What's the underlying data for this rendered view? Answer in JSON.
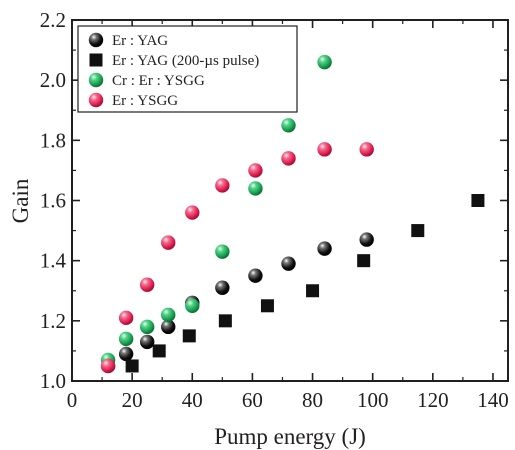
{
  "chart_data": {
    "type": "scatter",
    "title": "",
    "xlabel": "Pump energy (J)",
    "ylabel": "Gain",
    "xlim": [
      0,
      145
    ],
    "ylim": [
      1.0,
      2.2
    ],
    "xticks": [
      0,
      20,
      40,
      60,
      80,
      100,
      120,
      140
    ],
    "xtick_labels": [
      "0",
      "20",
      "40",
      "60",
      "80",
      "100",
      "120",
      "140"
    ],
    "yticks": [
      1.0,
      1.2,
      1.4,
      1.6,
      1.8,
      2.0,
      2.2
    ],
    "ytick_labels": [
      "1.0",
      "1.2",
      "1.4",
      "1.6",
      "1.8",
      "2.0",
      "2.2"
    ],
    "grid": false,
    "legend_position": "top-left",
    "series": [
      {
        "name": "Er : YAG",
        "marker": "circle",
        "color": "#111111",
        "x": [
          12,
          18,
          25,
          32,
          40,
          50,
          61,
          72,
          84,
          98
        ],
        "y": [
          1.05,
          1.09,
          1.13,
          1.18,
          1.26,
          1.31,
          1.35,
          1.39,
          1.44,
          1.47
        ]
      },
      {
        "name": "Er : YAG (200-µs pulse)",
        "marker": "square",
        "color": "#111111",
        "x": [
          20,
          29,
          39,
          51,
          65,
          80,
          97,
          115,
          135
        ],
        "y": [
          1.05,
          1.1,
          1.15,
          1.2,
          1.25,
          1.3,
          1.4,
          1.5,
          1.6
        ]
      },
      {
        "name": "Cr : Er : YSGG",
        "marker": "circle",
        "color": "#1faa5a",
        "x": [
          12,
          18,
          25,
          32,
          40,
          50,
          61,
          72,
          84
        ],
        "y": [
          1.07,
          1.14,
          1.18,
          1.22,
          1.25,
          1.43,
          1.64,
          1.85,
          2.06
        ]
      },
      {
        "name": "Er : YSGG",
        "marker": "circle",
        "color": "#e8285a",
        "x": [
          12,
          18,
          25,
          32,
          40,
          50,
          61,
          72,
          84,
          98
        ],
        "y": [
          1.05,
          1.21,
          1.32,
          1.46,
          1.56,
          1.65,
          1.7,
          1.74,
          1.77,
          1.77
        ]
      }
    ]
  }
}
